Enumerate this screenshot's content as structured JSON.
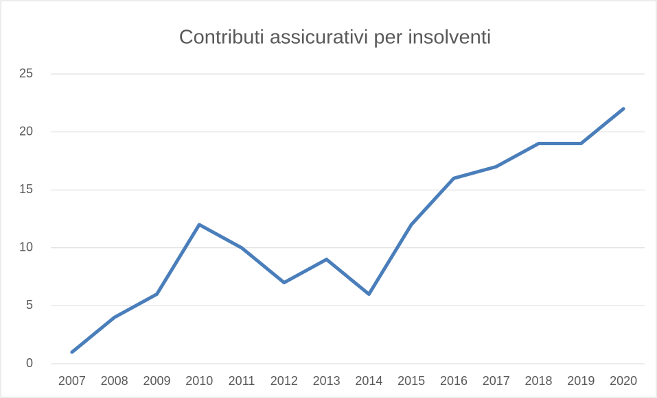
{
  "chart_data": {
    "type": "line",
    "title": "Contributi assicurativi per insolventi",
    "categories": [
      "2007",
      "2008",
      "2009",
      "2010",
      "2011",
      "2012",
      "2013",
      "2014",
      "2015",
      "2016",
      "2017",
      "2018",
      "2019",
      "2020"
    ],
    "values": [
      1,
      4,
      6,
      12,
      10,
      7,
      9,
      6,
      12,
      16,
      17,
      19,
      19,
      22
    ],
    "color": "#4a7ebb",
    "ylim": [
      0,
      25
    ],
    "yticks": [
      0,
      5,
      10,
      15,
      20,
      25
    ],
    "grid": true
  }
}
